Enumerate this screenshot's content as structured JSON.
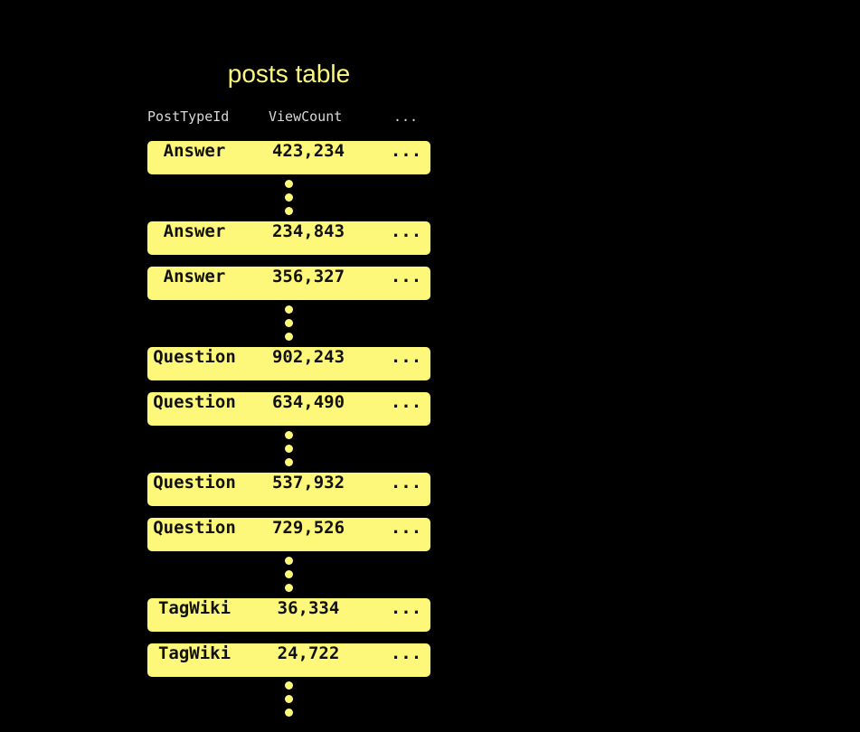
{
  "title": "posts table",
  "columns": [
    "PostTypeId",
    "ViewCount",
    "..."
  ],
  "rows": [
    {
      "type": "Answer",
      "views": "423,234",
      "more": "..."
    },
    {
      "type": "Answer",
      "views": "234,843",
      "more": "..."
    },
    {
      "type": "Answer",
      "views": "356,327",
      "more": "..."
    },
    {
      "type": "Question",
      "views": "902,243",
      "more": "..."
    },
    {
      "type": "Question",
      "views": "634,490",
      "more": "..."
    },
    {
      "type": "Question",
      "views": "537,932",
      "more": "..."
    },
    {
      "type": "Question",
      "views": "729,526",
      "more": "..."
    },
    {
      "type": "TagWiki",
      "views": "36,334",
      "more": "..."
    },
    {
      "type": "TagWiki",
      "views": "24,722",
      "more": "..."
    }
  ],
  "colors": {
    "background": "#000000",
    "accent": "#fdf87a"
  }
}
